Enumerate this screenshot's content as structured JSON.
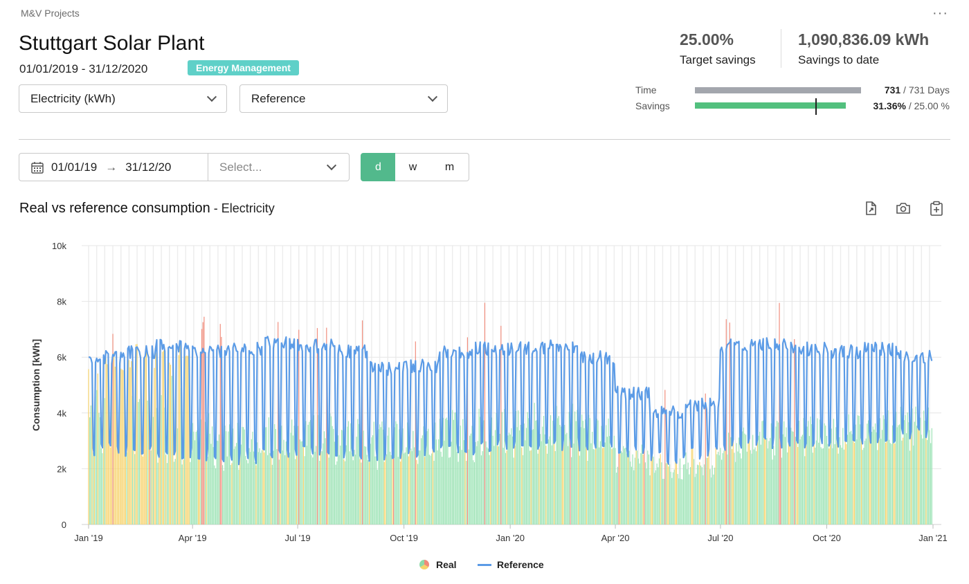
{
  "header": {
    "breadcrumb": "M&V Projects",
    "more_label": "···",
    "title": "Stuttgart Solar Plant",
    "date_range": "01/01/2019 - 31/12/2020",
    "tag": "Energy Management",
    "tag_color": "#5fd0c8"
  },
  "selectors": {
    "energy": "Electricity (kWh)",
    "baseline": "Reference"
  },
  "kpis": {
    "target_value": "25.00%",
    "target_label": "Target savings",
    "savings_value": "1,090,836.09 kWh",
    "savings_label": "Savings to date"
  },
  "progress": {
    "time_label": "Time",
    "time_bold": "731",
    "time_rest": " / 731 Days",
    "time_fraction": 1.0,
    "savings_label": "Savings",
    "savings_bold": "31.36%",
    "savings_rest": " / 25.00 %",
    "savings_fraction": 1.0,
    "savings_marker_fraction": 0.8,
    "time_color": "#a3a6ad",
    "savings_color": "#52c07e"
  },
  "filters": {
    "date_from": "01/01/19",
    "date_to": "31/12/20",
    "select_placeholder": "Select...",
    "granularity": [
      "d",
      "w",
      "m"
    ],
    "granularity_active": "d",
    "accent": "#52b98c"
  },
  "chart_header": {
    "title": "Real vs reference consumption",
    "separator": " - ",
    "subtitle": "Electricity"
  },
  "toolbar_icons": [
    "export-file-icon",
    "camera-icon",
    "clipboard-add-icon"
  ],
  "legend": {
    "real": "Real",
    "reference": "Reference"
  },
  "chart_data": {
    "type": "bar",
    "ylabel": "Consumption [kWh]",
    "ylim": [
      0,
      10000
    ],
    "yticks": [
      0,
      2000,
      4000,
      6000,
      8000,
      10000
    ],
    "ytick_labels": [
      "0",
      "2k",
      "4k",
      "6k",
      "8k",
      "10k"
    ],
    "xlim": [
      "2019-01-01",
      "2021-01-01"
    ],
    "xticks": [
      "2019-01-01",
      "2019-04-01",
      "2019-07-01",
      "2019-10-01",
      "2020-01-01",
      "2020-04-01",
      "2020-07-01",
      "2020-10-01",
      "2021-01-01"
    ],
    "xtick_labels": [
      "Jan '19",
      "Apr '19",
      "Jul '19",
      "Oct '19",
      "Jan '20",
      "Apr '20",
      "Jul '20",
      "Oct '20",
      "Jan '21"
    ],
    "grid": true,
    "legend_position": "bottom-center",
    "series": [
      {
        "name": "Real",
        "type": "bar",
        "monthly_typical_daily_kwh": [
          {
            "month": "2019-01",
            "value": 4600
          },
          {
            "month": "2019-02",
            "value": 4500
          },
          {
            "month": "2019-03",
            "value": 4300
          },
          {
            "month": "2019-04",
            "value": 3300
          },
          {
            "month": "2019-05",
            "value": 3000
          },
          {
            "month": "2019-06",
            "value": 3100
          },
          {
            "month": "2019-07",
            "value": 3200
          },
          {
            "month": "2019-08",
            "value": 3100
          },
          {
            "month": "2019-09",
            "value": 3000
          },
          {
            "month": "2019-10",
            "value": 3000
          },
          {
            "month": "2019-11",
            "value": 3300
          },
          {
            "month": "2019-12",
            "value": 3400
          },
          {
            "month": "2020-01",
            "value": 3500
          },
          {
            "month": "2020-02",
            "value": 3500
          },
          {
            "month": "2020-03",
            "value": 3300
          },
          {
            "month": "2020-04",
            "value": 2300
          },
          {
            "month": "2020-05",
            "value": 2000
          },
          {
            "month": "2020-06",
            "value": 2100
          },
          {
            "month": "2020-07",
            "value": 2800
          },
          {
            "month": "2020-08",
            "value": 3000
          },
          {
            "month": "2020-09",
            "value": 3100
          },
          {
            "month": "2020-10",
            "value": 3200
          },
          {
            "month": "2020-11",
            "value": 3300
          },
          {
            "month": "2020-12",
            "value": 3500
          }
        ],
        "bar_colors": {
          "below_reference": "#9be3b4",
          "near_reference": "#f7d36b",
          "above_reference": "#f08b7a"
        }
      },
      {
        "name": "Reference",
        "type": "line",
        "color": "#5b9be6",
        "monthly_weekday_daily_kwh": [
          {
            "month": "2019-01",
            "value": 6000
          },
          {
            "month": "2019-02",
            "value": 6200
          },
          {
            "month": "2019-03",
            "value": 6400
          },
          {
            "month": "2019-04",
            "value": 6200
          },
          {
            "month": "2019-05",
            "value": 6300
          },
          {
            "month": "2019-06",
            "value": 6500
          },
          {
            "month": "2019-07",
            "value": 6400
          },
          {
            "month": "2019-08",
            "value": 6200
          },
          {
            "month": "2019-09",
            "value": 5600
          },
          {
            "month": "2019-10",
            "value": 5700
          },
          {
            "month": "2019-11",
            "value": 6200
          },
          {
            "month": "2019-12",
            "value": 6300
          },
          {
            "month": "2020-01",
            "value": 6300
          },
          {
            "month": "2020-02",
            "value": 6400
          },
          {
            "month": "2020-03",
            "value": 6000
          },
          {
            "month": "2020-04",
            "value": 4700
          },
          {
            "month": "2020-05",
            "value": 4000
          },
          {
            "month": "2020-06",
            "value": 4300
          },
          {
            "month": "2020-07",
            "value": 6400
          },
          {
            "month": "2020-08",
            "value": 6500
          },
          {
            "month": "2020-09",
            "value": 6300
          },
          {
            "month": "2020-10",
            "value": 6200
          },
          {
            "month": "2020-11",
            "value": 6300
          },
          {
            "month": "2020-12",
            "value": 6000
          }
        ],
        "monthly_weekend_daily_kwh": [
          {
            "month": "2019-01",
            "value": 2700
          },
          {
            "month": "2019-02",
            "value": 2700
          },
          {
            "month": "2019-03",
            "value": 2600
          },
          {
            "month": "2019-04",
            "value": 2500
          },
          {
            "month": "2019-05",
            "value": 2400
          },
          {
            "month": "2019-06",
            "value": 2600
          },
          {
            "month": "2019-07",
            "value": 2700
          },
          {
            "month": "2019-08",
            "value": 2600
          },
          {
            "month": "2019-09",
            "value": 2500
          },
          {
            "month": "2019-10",
            "value": 2600
          },
          {
            "month": "2019-11",
            "value": 2700
          },
          {
            "month": "2019-12",
            "value": 2800
          },
          {
            "month": "2020-01",
            "value": 2900
          },
          {
            "month": "2020-02",
            "value": 2900
          },
          {
            "month": "2020-03",
            "value": 2800
          },
          {
            "month": "2020-04",
            "value": 2600
          },
          {
            "month": "2020-05",
            "value": 2400
          },
          {
            "month": "2020-06",
            "value": 2600
          },
          {
            "month": "2020-07",
            "value": 2900
          },
          {
            "month": "2020-08",
            "value": 2900
          },
          {
            "month": "2020-09",
            "value": 2900
          },
          {
            "month": "2020-10",
            "value": 3000
          },
          {
            "month": "2020-11",
            "value": 3100
          },
          {
            "month": "2020-12",
            "value": 3300
          }
        ]
      }
    ]
  }
}
